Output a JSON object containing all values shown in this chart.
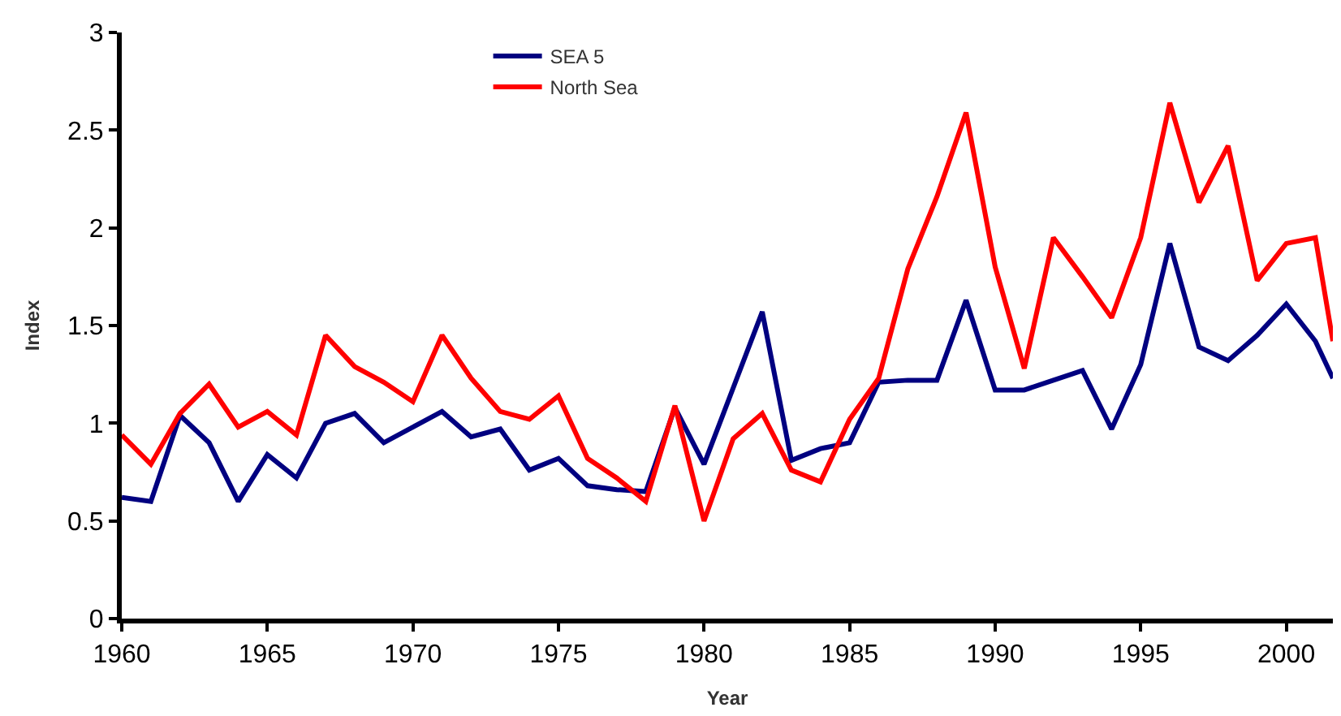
{
  "chart_data": {
    "type": "line",
    "xlabel": "Year",
    "ylabel": "Index",
    "x": [
      1960,
      1961,
      1962,
      1963,
      1964,
      1965,
      1966,
      1967,
      1968,
      1969,
      1970,
      1971,
      1972,
      1973,
      1974,
      1975,
      1976,
      1977,
      1978,
      1979,
      1980,
      1981,
      1982,
      1983,
      1984,
      1985,
      1986,
      1987,
      1988,
      1989,
      1990,
      1991,
      1992,
      1993,
      1994,
      1995,
      1996,
      1997,
      1998,
      1999,
      2000,
      2001,
      2001.6
    ],
    "series": [
      {
        "name": "SEA 5",
        "color": "#000080",
        "values": [
          0.62,
          0.6,
          1.04,
          0.9,
          0.6,
          0.84,
          0.72,
          1.0,
          1.05,
          0.9,
          0.98,
          1.06,
          0.93,
          0.97,
          0.76,
          0.82,
          0.68,
          0.66,
          0.65,
          1.08,
          0.79,
          1.18,
          1.57,
          0.81,
          0.87,
          0.9,
          1.21,
          1.22,
          1.22,
          1.63,
          1.17,
          1.17,
          1.22,
          1.27,
          0.97,
          1.3,
          1.92,
          1.39,
          1.32,
          1.45,
          1.61,
          1.42,
          1.23
        ]
      },
      {
        "name": "North Sea",
        "color": "#ff0000",
        "values": [
          0.94,
          0.79,
          1.05,
          1.2,
          0.98,
          1.06,
          0.94,
          1.45,
          1.29,
          1.21,
          1.11,
          1.45,
          1.23,
          1.06,
          1.02,
          1.14,
          0.82,
          0.72,
          0.6,
          1.09,
          0.5,
          0.92,
          1.05,
          0.76,
          0.7,
          1.02,
          1.23,
          1.79,
          2.16,
          2.59,
          1.8,
          1.28,
          1.95,
          1.75,
          1.54,
          1.95,
          2.64,
          2.13,
          2.42,
          1.73,
          1.92,
          1.95,
          1.42
        ]
      }
    ],
    "xlim": [
      1960,
      2001.6
    ],
    "xticks": [
      1960,
      1965,
      1970,
      1975,
      1980,
      1985,
      1990,
      1995,
      2000
    ],
    "ylim": [
      0,
      3
    ],
    "yticks": [
      0,
      0.5,
      1,
      1.5,
      2,
      2.5,
      3
    ],
    "legend": "top",
    "marker": "none",
    "line_style": "solid"
  }
}
